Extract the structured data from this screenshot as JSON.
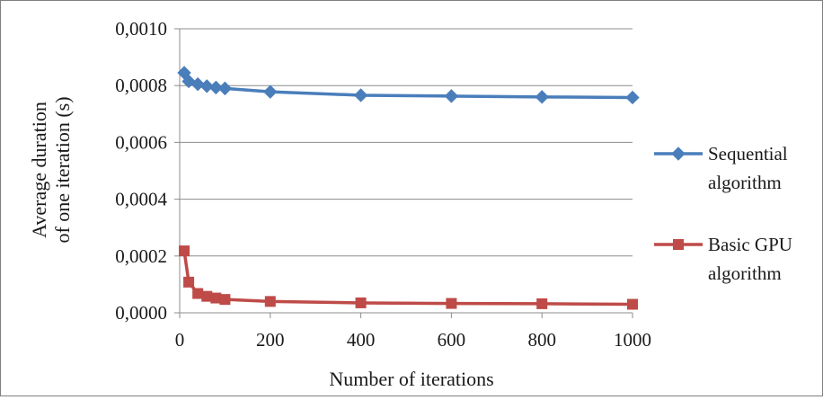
{
  "chart_data": {
    "type": "line",
    "title": "",
    "xlabel": "Number of iterations",
    "ylabel": "Average duration of one iteration (s)",
    "ylabel_lines": [
      "Average duration",
      "of one iteration (s)"
    ],
    "xlim": [
      0,
      1000
    ],
    "ylim": [
      0,
      0.001
    ],
    "x_ticks": [
      0,
      200,
      400,
      600,
      800,
      1000
    ],
    "x_tick_labels": [
      "0",
      "200",
      "400",
      "600",
      "800",
      "1000"
    ],
    "y_ticks": [
      0,
      0.0002,
      0.0004,
      0.0006,
      0.0008,
      0.001
    ],
    "y_tick_labels": [
      "0,0000",
      "0,0002",
      "0,0004",
      "0,0006",
      "0,0008",
      "0,0010"
    ],
    "grid": {
      "y_major": true,
      "x_major": false
    },
    "legend_position": "right",
    "series": [
      {
        "name": "Sequential algorithm",
        "legend_lines": [
          "Sequential",
          "algorithm"
        ],
        "color": "#4a7ebb",
        "marker": "diamond",
        "x": [
          10,
          20,
          40,
          60,
          80,
          100,
          200,
          400,
          600,
          800,
          1000
        ],
        "y": [
          0.000845,
          0.000815,
          0.000805,
          0.000798,
          0.000793,
          0.00079,
          0.000778,
          0.000766,
          0.000763,
          0.00076,
          0.000758
        ]
      },
      {
        "name": "Basic GPU algorithm",
        "legend_lines": [
          "Basic GPU",
          "algorithm"
        ],
        "color": "#be4b48",
        "marker": "square",
        "x": [
          10,
          20,
          40,
          60,
          80,
          100,
          200,
          400,
          600,
          800,
          1000
        ],
        "y": [
          0.000218,
          0.000108,
          6.8e-05,
          5.8e-05,
          5.2e-05,
          4.7e-05,
          4e-05,
          3.5e-05,
          3.3e-05,
          3.2e-05,
          3e-05
        ]
      }
    ]
  }
}
